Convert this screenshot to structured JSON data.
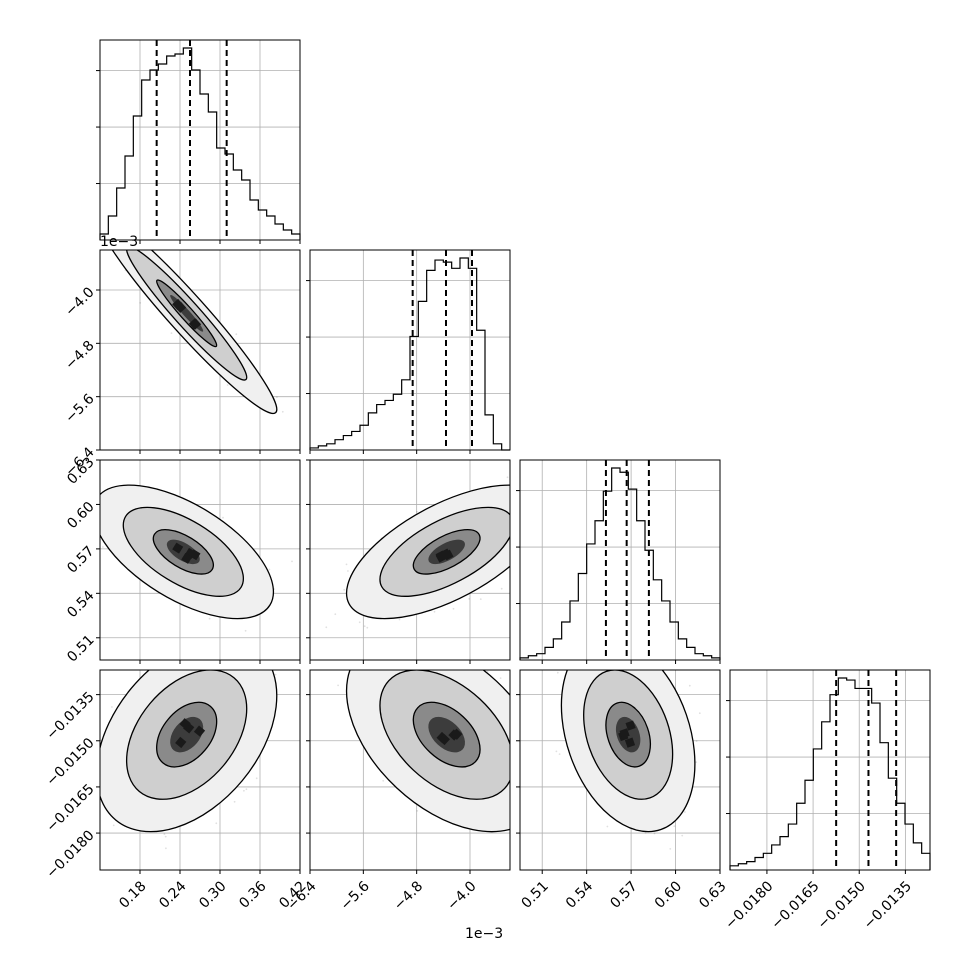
{
  "chart_data": {
    "type": "corner",
    "parameters": [
      {
        "range": [
          0.12,
          0.42
        ],
        "ticks": [
          0.18,
          0.24,
          0.3,
          0.36,
          0.42
        ],
        "tick_labels": [
          "0.18",
          "0.24",
          "0.30",
          "0.36",
          "0.42"
        ],
        "quantiles": [
          0.205,
          0.255,
          0.31
        ],
        "offset_label": ""
      },
      {
        "range": [
          -6.4,
          -3.4
        ],
        "ticks": [
          -6.4,
          -5.6,
          -4.8,
          -4.0
        ],
        "tick_labels": [
          "−6.4",
          "−5.6",
          "−4.8",
          "−4.0"
        ],
        "quantiles": [
          -4.86,
          -4.36,
          -3.97
        ],
        "offset_label": "1e−3"
      },
      {
        "range": [
          0.495,
          0.63
        ],
        "ticks": [
          0.51,
          0.54,
          0.57,
          0.6,
          0.63
        ],
        "tick_labels": [
          "0.51",
          "0.54",
          "0.57",
          "0.60",
          "0.63"
        ],
        "quantiles": [
          0.553,
          0.567,
          0.582
        ],
        "offset_label": ""
      },
      {
        "range": [
          -0.0192,
          -0.0127
        ],
        "ticks": [
          -0.018,
          -0.0165,
          -0.015,
          -0.0135
        ],
        "tick_labels": [
          "−0.0180",
          "−0.0165",
          "−0.0150",
          "−0.0135"
        ],
        "quantiles": [
          -0.01575,
          -0.0147,
          -0.0138
        ],
        "offset_label": ""
      }
    ],
    "histograms": [
      [
        0.03,
        0.12,
        0.26,
        0.42,
        0.62,
        0.8,
        0.85,
        0.88,
        0.92,
        0.93,
        0.96,
        0.85,
        0.73,
        0.64,
        0.46,
        0.43,
        0.35,
        0.3,
        0.2,
        0.15,
        0.12,
        0.08,
        0.05,
        0.03
      ],
      [
        0.01,
        0.02,
        0.03,
        0.05,
        0.07,
        0.09,
        0.12,
        0.18,
        0.22,
        0.24,
        0.27,
        0.34,
        0.55,
        0.72,
        0.87,
        0.92,
        0.91,
        0.88,
        0.93,
        0.88,
        0.58,
        0.17,
        0.03,
        0.0
      ],
      [
        0.01,
        0.02,
        0.03,
        0.06,
        0.1,
        0.18,
        0.28,
        0.41,
        0.55,
        0.66,
        0.8,
        0.91,
        0.89,
        0.81,
        0.66,
        0.52,
        0.38,
        0.28,
        0.18,
        0.1,
        0.06,
        0.03,
        0.02,
        0.01
      ],
      [
        0.02,
        0.03,
        0.04,
        0.06,
        0.08,
        0.12,
        0.16,
        0.22,
        0.32,
        0.43,
        0.58,
        0.71,
        0.84,
        0.92,
        0.91,
        0.87,
        0.87,
        0.8,
        0.61,
        0.44,
        0.32,
        0.22,
        0.13,
        0.08
      ]
    ],
    "pairs": [
      {
        "row": 1,
        "col": 0,
        "mean": [
          0.25,
          -4.35
        ],
        "sd": [
          0.045,
          0.5
        ],
        "corr": -0.96
      },
      {
        "row": 2,
        "col": 0,
        "mean": [
          0.245,
          0.568
        ],
        "sd": [
          0.045,
          0.015
        ],
        "corr": -0.6
      },
      {
        "row": 2,
        "col": 1,
        "mean": [
          -4.35,
          0.568
        ],
        "sd": [
          0.5,
          0.015
        ],
        "corr": 0.62
      },
      {
        "row": 3,
        "col": 0,
        "mean": [
          0.25,
          -0.0148
        ],
        "sd": [
          0.045,
          0.00105
        ],
        "corr": 0.4
      },
      {
        "row": 3,
        "col": 1,
        "mean": [
          -4.35,
          -0.0148
        ],
        "sd": [
          0.5,
          0.00105
        ],
        "corr": -0.45
      },
      {
        "row": 3,
        "col": 2,
        "mean": [
          0.568,
          -0.0148
        ],
        "sd": [
          0.015,
          0.00105
        ],
        "corr": -0.3
      }
    ],
    "grid": true,
    "xlabel": "",
    "ylabel": "",
    "title": ""
  }
}
